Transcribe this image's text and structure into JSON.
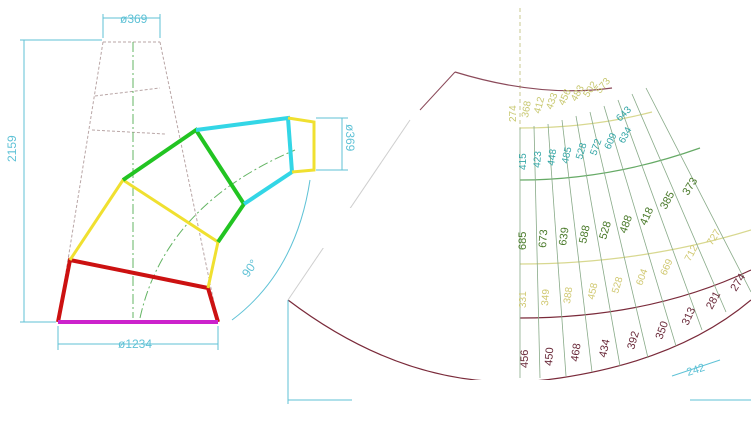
{
  "colors": {
    "background": "#ffffff",
    "dimension": "#5fc2d6",
    "outline": "#b9a6a6",
    "center_dash": "#63b463",
    "red": "#cc1111",
    "magenta": "#cc22cc",
    "yellow": "#f0e030",
    "green": "#22c422",
    "cyan": "#33d6e6",
    "arc_maroon": "#8b4a5a",
    "band_yellow": "#d8d890",
    "band_green": "#66aa66",
    "band_teal": "#33a6a6",
    "band_olive": "#5a7a33",
    "band_brown": "#7a2a3a"
  },
  "left_elbow": {
    "dim_top_diameter": "ø369",
    "dim_height": "2159",
    "dim_right_diameter": "ø369",
    "dim_bottom_diameter": "ø1234",
    "dim_angle": "90°"
  },
  "right_development": {
    "row1_values": [
      "274",
      "368",
      "412",
      "433",
      "456",
      "483",
      "502",
      "573",
      "643"
    ],
    "row2_values": [
      "415",
      "423",
      "448",
      "485",
      "528",
      "572",
      "609",
      "634"
    ],
    "row3_values": [
      "685",
      "673",
      "639",
      "588",
      "528",
      "488",
      "418",
      "385",
      "373"
    ],
    "row4_values": [
      "331",
      "349",
      "388",
      "458",
      "528",
      "604",
      "669",
      "712",
      "727"
    ],
    "row5_values": [
      "456",
      "450",
      "468",
      "434",
      "392",
      "350",
      "313",
      "281",
      "274"
    ],
    "dim_segment": "242"
  }
}
